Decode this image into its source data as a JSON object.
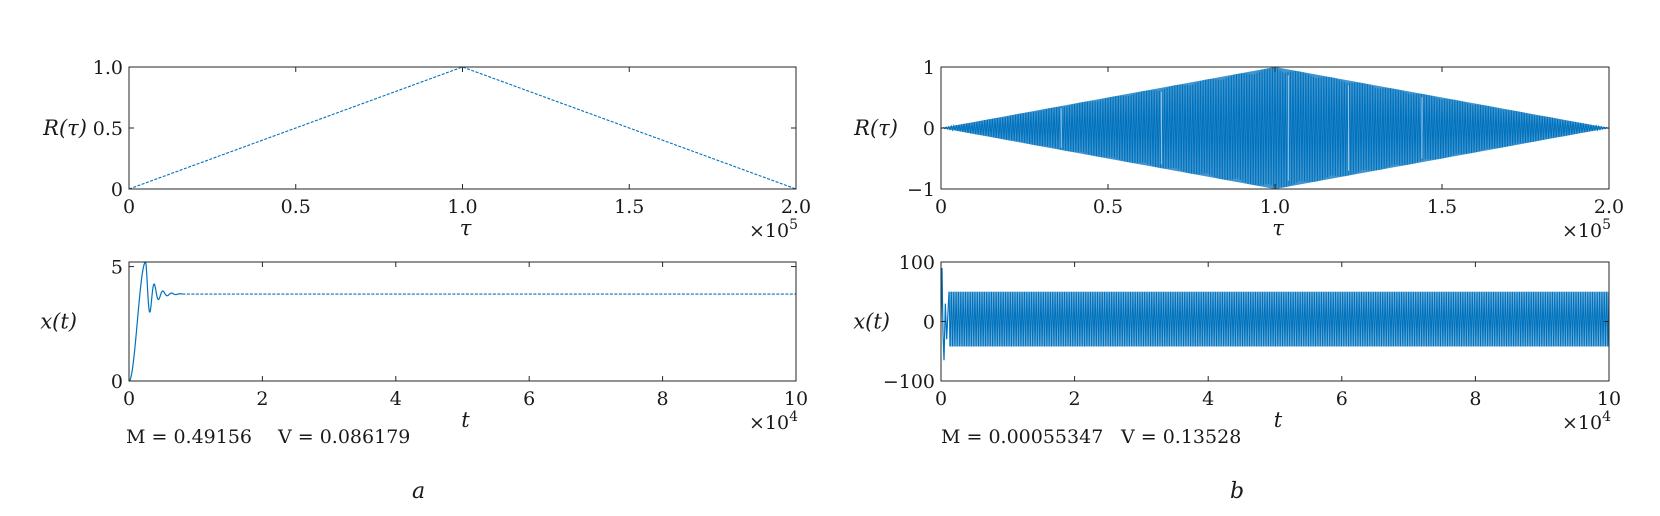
{
  "colors": {
    "series": "#0072BD",
    "axis": "#262626"
  },
  "panels": [
    {
      "letter": "a",
      "stats": {
        "M": "M = 0.49156",
        "V": "V = 0.086179"
      }
    },
    {
      "letter": "b",
      "stats": {
        "M": "M = 0.00055347",
        "V": "V = 0.13528"
      }
    }
  ],
  "chart_data": [
    {
      "id": "a-top",
      "type": "line",
      "xlabel": "τ",
      "ylabel": "R(τ)",
      "xlim": [
        0,
        200000
      ],
      "ylim": [
        0,
        1
      ],
      "xticks": [
        0,
        50000,
        100000,
        150000,
        200000
      ],
      "xtick_labels": [
        "0",
        "0.5",
        "1.0",
        "1.5",
        "2.0"
      ],
      "x_multiplier": "×10^5",
      "yticks": [
        0,
        0.5,
        1
      ],
      "ytick_labels": [
        "0",
        "0.5",
        "1.0"
      ],
      "series": [
        {
          "kind": "polyline",
          "x": [
            0,
            100000,
            200000
          ],
          "y": [
            0,
            1,
            0
          ]
        }
      ]
    },
    {
      "id": "a-bottom",
      "type": "line",
      "xlabel": "t",
      "ylabel": "x(t)",
      "xlim": [
        0,
        100000
      ],
      "ylim": [
        0,
        5.2
      ],
      "xticks": [
        0,
        20000,
        40000,
        60000,
        80000,
        100000
      ],
      "xtick_labels": [
        "0",
        "2",
        "4",
        "6",
        "8",
        "10"
      ],
      "x_multiplier": "×10^4",
      "yticks": [
        0,
        5
      ],
      "ytick_labels": [
        "0",
        "5"
      ],
      "series": [
        {
          "kind": "damped",
          "x_peak": 2500,
          "settle": 3.8,
          "peak": 5.2,
          "decay_end": 7000
        }
      ]
    },
    {
      "id": "b-top",
      "type": "line",
      "xlabel": "τ",
      "ylabel": "R(τ)",
      "xlim": [
        0,
        200000
      ],
      "ylim": [
        -1,
        1
      ],
      "xticks": [
        0,
        50000,
        100000,
        150000,
        200000
      ],
      "xtick_labels": [
        "0",
        "0.5",
        "1.0",
        "1.5",
        "2.0"
      ],
      "x_multiplier": "×10^5",
      "yticks": [
        -1,
        0,
        1
      ],
      "ytick_labels": [
        "−1",
        "0",
        "1"
      ],
      "series": [
        {
          "kind": "oscillating-diamond",
          "center": 100000,
          "peak": 1
        }
      ]
    },
    {
      "id": "b-bottom",
      "type": "line",
      "xlabel": "t",
      "ylabel": "x(t)",
      "xlim": [
        0,
        100000
      ],
      "ylim": [
        -100,
        100
      ],
      "xticks": [
        0,
        20000,
        40000,
        60000,
        80000,
        100000
      ],
      "xtick_labels": [
        "0",
        "2",
        "4",
        "6",
        "8",
        "10"
      ],
      "x_multiplier": "×10^4",
      "yticks": [
        -100,
        0,
        100
      ],
      "ytick_labels": [
        "−100",
        "0",
        "100"
      ],
      "series": [
        {
          "kind": "oscillating-band",
          "upper": 50,
          "lower": -42,
          "initial_max": 90,
          "initial_min": -65
        }
      ]
    }
  ]
}
